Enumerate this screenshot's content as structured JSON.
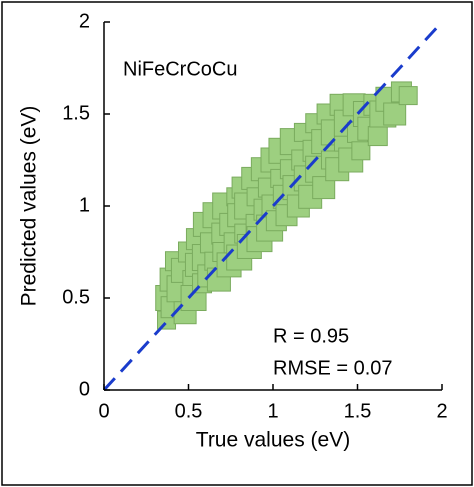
{
  "chart_data": {
    "type": "scatter",
    "x_label": "True values (eV)",
    "y_label": "Predicted values (eV)",
    "annotations": [
      "NiFeCrCoCu",
      "R = 0.95",
      "RMSE = 0.07"
    ],
    "xlim": [
      0,
      2
    ],
    "ylim": [
      0,
      2
    ],
    "xticks": [
      0,
      0.5,
      1,
      1.5,
      2
    ],
    "yticks": [
      0,
      0.5,
      1,
      1.5,
      2
    ],
    "diagonal": true,
    "diagonal_color": "#1a3ccc",
    "series": [
      {
        "color": "#9dcf80",
        "x": [
          0.37,
          0.38,
          0.4,
          0.4,
          0.42,
          0.45,
          0.47,
          0.48,
          0.5,
          0.52,
          0.53,
          0.55,
          0.55,
          0.58,
          0.6,
          0.6,
          0.62,
          0.63,
          0.65,
          0.66,
          0.68,
          0.7,
          0.7,
          0.72,
          0.74,
          0.75,
          0.77,
          0.78,
          0.8,
          0.8,
          0.82,
          0.83,
          0.85,
          0.86,
          0.88,
          0.9,
          0.9,
          0.92,
          0.94,
          0.95,
          0.97,
          0.98,
          1.0,
          1.0,
          1.02,
          1.04,
          1.05,
          1.07,
          1.08,
          1.1,
          1.12,
          1.13,
          1.15,
          1.17,
          1.18,
          1.2,
          1.22,
          1.24,
          1.25,
          1.27,
          1.3,
          1.3,
          1.32,
          1.34,
          1.36,
          1.38,
          1.4,
          1.42,
          1.44,
          1.46,
          1.48,
          1.5,
          1.52,
          1.55,
          1.57,
          1.6,
          1.62,
          1.65,
          1.68,
          1.72,
          1.76,
          1.8
        ],
        "values": [
          0.38,
          0.5,
          0.6,
          0.45,
          0.7,
          0.55,
          0.65,
          0.42,
          0.75,
          0.6,
          0.5,
          0.68,
          0.82,
          0.58,
          0.72,
          0.9,
          0.62,
          0.8,
          0.7,
          0.95,
          0.6,
          0.85,
          0.75,
          1.0,
          0.68,
          0.9,
          0.8,
          1.05,
          0.72,
          0.95,
          1.1,
          0.85,
          1.0,
          0.78,
          1.15,
          0.9,
          1.05,
          0.82,
          1.2,
          0.98,
          1.1,
          0.88,
          1.25,
          1.0,
          0.92,
          1.15,
          1.3,
          1.05,
          0.95,
          1.2,
          1.35,
          1.1,
          1.0,
          1.25,
          1.4,
          1.15,
          1.05,
          1.3,
          1.45,
          1.2,
          1.35,
          1.1,
          1.5,
          1.25,
          1.4,
          1.2,
          1.55,
          1.35,
          1.45,
          1.25,
          1.55,
          1.4,
          1.3,
          1.5,
          1.42,
          1.55,
          1.38,
          1.5,
          1.58,
          1.5,
          1.62,
          1.6
        ]
      }
    ]
  }
}
